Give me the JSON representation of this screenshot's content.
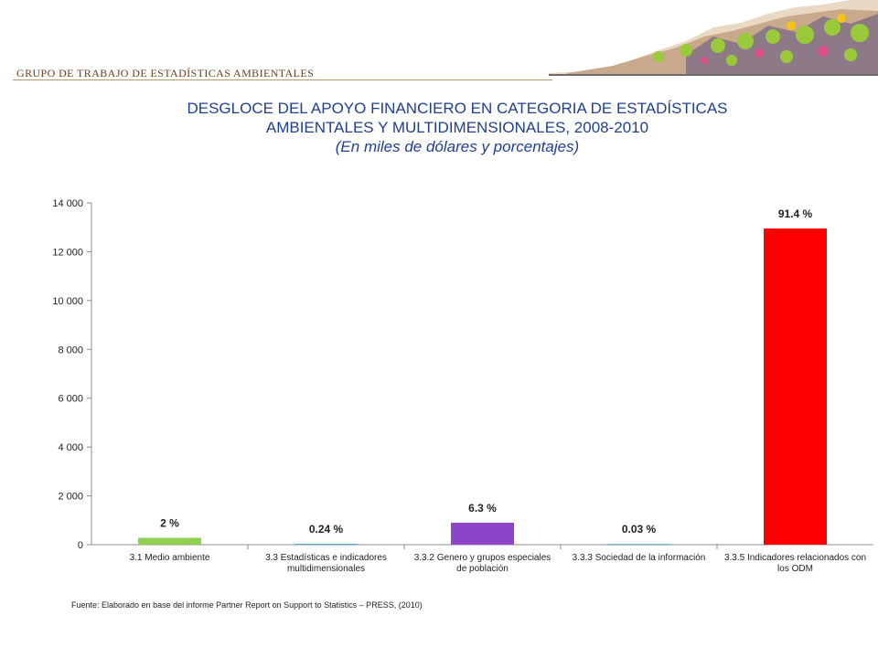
{
  "header": {
    "group_label": "GRUPO DE TRABAJO DE ESTADÍSTICAS AMBIENTALES"
  },
  "title": {
    "line1": "DESGLOCE DEL APOYO FINANCIERO EN CATEGORIA DE ESTADÍSTICAS",
    "line2": "AMBIENTALES Y MULTIDIMENSIONALES, 2008-2010",
    "subtitle": "(En miles de dólares y porcentajes)"
  },
  "colors": {
    "title": "#1f3f8f",
    "header": "#6b3f1d"
  },
  "chart_data": {
    "type": "bar",
    "title": "",
    "xlabel": "",
    "ylabel": "",
    "ylim": [
      0,
      14000
    ],
    "yticks": [
      0,
      2000,
      4000,
      6000,
      8000,
      10000,
      12000,
      14000
    ],
    "ytick_labels": [
      "0",
      "2 000",
      "4 000",
      "6 000",
      "8 000",
      "10 000",
      "12 000",
      "14 000"
    ],
    "grid": false,
    "categories": [
      [
        "3.1 Medio ambiente"
      ],
      [
        "3.3 Estadísticas e indicadores",
        "multidimensionales"
      ],
      [
        "3.3.2 Genero y grupos especiales",
        "de población"
      ],
      [
        "3.3.3 Sociedad de la información"
      ],
      [
        "3.3.5 Indicadores relacionados con",
        "los ODM"
      ]
    ],
    "values": [
      280,
      35,
      900,
      4,
      12950
    ],
    "data_labels": [
      "2 %",
      "0.24 %",
      "6.3 %",
      "0.03 %",
      "91.4 %"
    ],
    "bar_colors": [
      "#92d050",
      "#4bacc6",
      "#8e44c8",
      "#4bacc6",
      "#ff0000"
    ]
  },
  "footer": {
    "source": "Fuente: Elaborado en base del informe Partner Report on Support to Statistics – PRESS, (2010)"
  }
}
